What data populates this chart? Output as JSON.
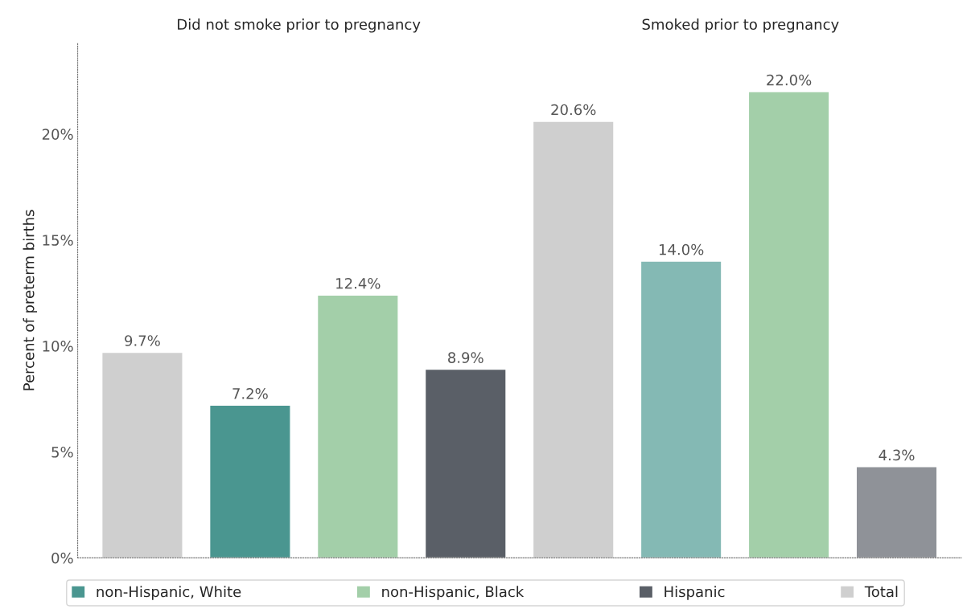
{
  "chart_data": {
    "type": "bar",
    "ylabel": "Percent of preterm births",
    "annotations": [
      "Did not smoke prior to pregnancy",
      "Smoked prior to pregnancy"
    ],
    "categories": [
      null,
      null,
      null,
      null,
      null,
      null,
      null,
      null
    ],
    "ylim": [
      0,
      24.3
    ],
    "yticks": [
      {
        "value": 0,
        "label": "0%"
      },
      {
        "value": 5,
        "label": "5%"
      },
      {
        "value": 10,
        "label": "10%"
      },
      {
        "value": 15,
        "label": "15%"
      },
      {
        "value": 20,
        "label": "20%"
      }
    ],
    "tick_labels": "y",
    "grid": false,
    "legend": "bottom",
    "series": [
      {
        "name": "non-Hispanic, White",
        "color": "#4a9690",
        "colors": [
          null,
          "#4a9690",
          null,
          null,
          null,
          "#84b9b4",
          null,
          null
        ],
        "values": [
          null,
          7.2,
          null,
          null,
          null,
          14.0,
          null,
          null
        ],
        "value_labels": [
          null,
          "7.2%",
          null,
          null,
          null,
          "14.0%",
          null,
          null
        ]
      },
      {
        "name": "non-Hispanic, Black",
        "color": "#a3cfa9",
        "values": [
          null,
          null,
          12.4,
          null,
          null,
          null,
          22.0,
          null
        ],
        "value_labels": [
          null,
          null,
          "12.4%",
          null,
          null,
          null,
          "22.0%",
          null
        ]
      },
      {
        "name": "Hispanic",
        "color": "#5a5f67",
        "colors": [
          null,
          null,
          null,
          "#5a5f67",
          null,
          null,
          null,
          "#8f9298"
        ],
        "values": [
          null,
          null,
          null,
          8.9,
          null,
          null,
          null,
          4.3
        ],
        "value_labels": [
          null,
          null,
          null,
          "8.9%",
          null,
          null,
          null,
          "4.3%"
        ]
      },
      {
        "name": "Total",
        "color": "#cfcfcf",
        "values": [
          9.7,
          null,
          null,
          null,
          20.6,
          null,
          null,
          null
        ],
        "value_labels": [
          "9.7%",
          null,
          null,
          null,
          "20.6%",
          null,
          null,
          null
        ]
      }
    ]
  }
}
